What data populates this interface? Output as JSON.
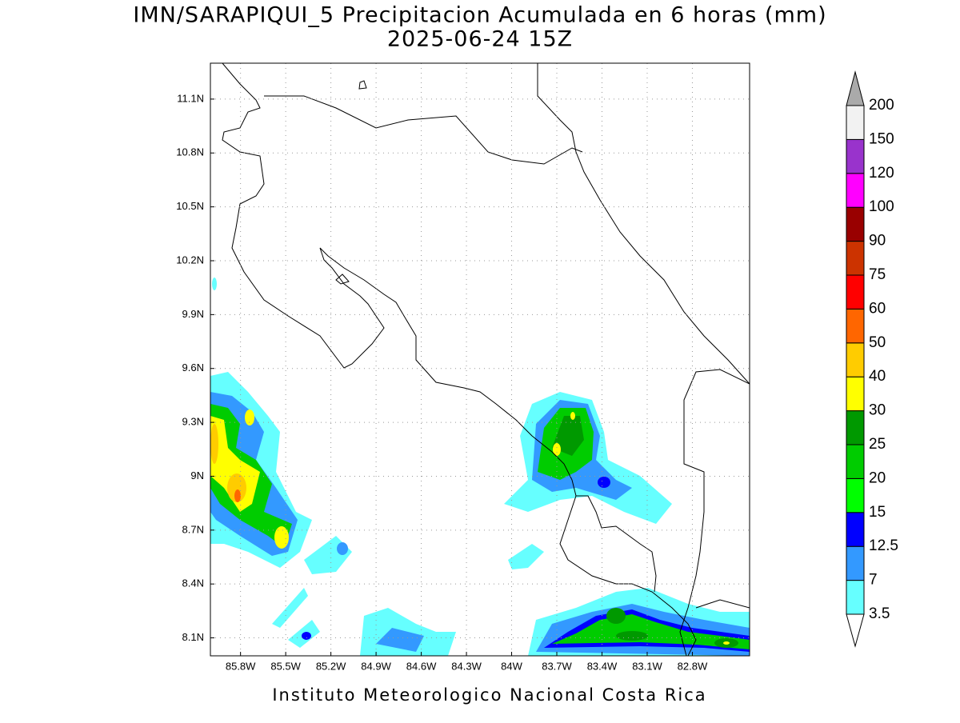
{
  "chart_data": {
    "type": "map",
    "title": "IMN/SARAPIQUI_5 Precipitacion Acumulada en 6 horas (mm)",
    "subtitle": "2025-06-24 15Z",
    "xlim": [
      -86.0,
      -82.42
    ],
    "ylim": [
      8.0,
      11.3
    ],
    "xticks": [
      {
        "value": -85.8,
        "label": "85.8W"
      },
      {
        "value": -85.5,
        "label": "85.5W"
      },
      {
        "value": -85.2,
        "label": "85.2W"
      },
      {
        "value": -84.9,
        "label": "84.9W"
      },
      {
        "value": -84.6,
        "label": "84.6W"
      },
      {
        "value": -84.3,
        "label": "84.3W"
      },
      {
        "value": -84.0,
        "label": "84W"
      },
      {
        "value": -83.7,
        "label": "83.7W"
      },
      {
        "value": -83.4,
        "label": "83.4W"
      },
      {
        "value": -83.1,
        "label": "83.1W"
      },
      {
        "value": -82.8,
        "label": "82.8W"
      }
    ],
    "yticks": [
      {
        "value": 8.1,
        "label": "8.1N"
      },
      {
        "value": 8.4,
        "label": "8.4N"
      },
      {
        "value": 8.7,
        "label": "8.7N"
      },
      {
        "value": 9.0,
        "label": "9N"
      },
      {
        "value": 9.3,
        "label": "9.3N"
      },
      {
        "value": 9.6,
        "label": "9.6N"
      },
      {
        "value": 9.9,
        "label": "9.9N"
      },
      {
        "value": 10.2,
        "label": "10.2N"
      },
      {
        "value": 10.5,
        "label": "10.5N"
      },
      {
        "value": 10.8,
        "label": "10.8N"
      },
      {
        "value": 11.1,
        "label": "11.1N"
      }
    ],
    "grid": true,
    "colorbar": {
      "levels": [
        3.5,
        7,
        12.5,
        15,
        20,
        25,
        30,
        40,
        50,
        60,
        75,
        90,
        100,
        120,
        150,
        200
      ],
      "colors": [
        "#ffffff",
        "#66ffff",
        "#3399ff",
        "#0000ff",
        "#00ff00",
        "#00cc00",
        "#009900",
        "#ffff00",
        "#ffcc00",
        "#ff6600",
        "#ff0000",
        "#cc3300",
        "#990000",
        "#ff00ff",
        "#9933cc",
        "#f2f2f2",
        "#aaaaaa"
      ]
    },
    "footer": "Instituto Meteorologico Nacional Costa Rica"
  }
}
